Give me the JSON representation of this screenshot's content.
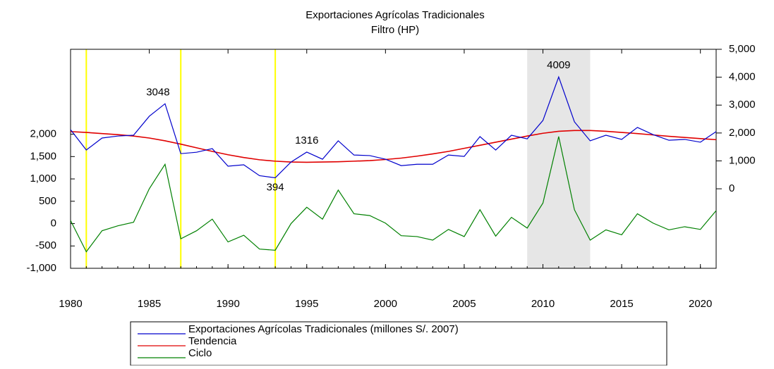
{
  "chart_data": {
    "type": "line",
    "title": "Exportaciones Agrícolas Tradicionales",
    "subtitle": "Filtro (HP)",
    "x": [
      1980,
      1981,
      1982,
      1983,
      1984,
      1985,
      1986,
      1987,
      1988,
      1989,
      1990,
      1991,
      1992,
      1993,
      1994,
      1995,
      1996,
      1997,
      1998,
      1999,
      2000,
      2001,
      2002,
      2003,
      2004,
      2005,
      2006,
      2007,
      2008,
      2009,
      2010,
      2011,
      2012,
      2013,
      2014,
      2015,
      2016,
      2017,
      2018,
      2019,
      2020,
      2021
    ],
    "xlim": [
      1980,
      2021
    ],
    "xticks": [
      1980,
      1985,
      1990,
      1995,
      2000,
      2005,
      2010,
      2015,
      2020
    ],
    "ylim": [
      -1000,
      3900
    ],
    "yticks": [
      {
        "value": -1000,
        "label": "-1,000"
      },
      -500,
      0,
      500,
      {
        "value": 1000,
        "label": "1,000"
      },
      {
        "value": 1500,
        "label": "1,500"
      },
      {
        "value": 2000,
        "label": "2,000"
      }
    ],
    "y2lim": [
      -2850,
      5000
    ],
    "y2ticks": [
      0,
      {
        "value": 1000,
        "label": "1,000"
      },
      {
        "value": 2000,
        "label": "2,000"
      },
      {
        "value": 3000,
        "label": "3,000"
      },
      {
        "value": 4000,
        "label": "4,000"
      },
      {
        "value": 5000,
        "label": "5,000"
      }
    ],
    "shaded_range": [
      2009,
      2013
    ],
    "vertical_lines": [
      1981,
      1987,
      1993
    ],
    "annotations": [
      "3048",
      "4009",
      "1316",
      "394"
    ],
    "series": [
      {
        "name": "Exportaciones Agrícolas Tradicionales (millones S/. 2007)",
        "color": "#0000cc",
        "axis": "y2",
        "values": [
          2120,
          1390,
          1820,
          1890,
          1920,
          2600,
          3048,
          1260,
          1310,
          1440,
          810,
          860,
          470,
          394,
          960,
          1316,
          1060,
          1720,
          1210,
          1190,
          1060,
          830,
          880,
          880,
          1210,
          1160,
          1870,
          1390,
          1920,
          1790,
          2450,
          4009,
          2400,
          1720,
          1920,
          1770,
          2200,
          1940,
          1740,
          1770,
          1670,
          2050
        ]
      },
      {
        "name": "Tendencia",
        "color": "#e00000",
        "axis": "y2",
        "values": [
          2050,
          2020,
          1980,
          1940,
          1890,
          1820,
          1720,
          1600,
          1470,
          1340,
          1220,
          1120,
          1040,
          990,
          960,
          950,
          960,
          970,
          990,
          1010,
          1050,
          1100,
          1170,
          1250,
          1340,
          1450,
          1560,
          1670,
          1780,
          1890,
          1990,
          2060,
          2090,
          2090,
          2060,
          2020,
          1980,
          1930,
          1880,
          1840,
          1800,
          1760
        ]
      },
      {
        "name": "Ciclo",
        "color": "#008000",
        "values": [
          70,
          -630,
          -160,
          -50,
          30,
          780,
          1328,
          -340,
          -160,
          100,
          -410,
          -260,
          -570,
          -596,
          0,
          366,
          100,
          750,
          220,
          180,
          10,
          -270,
          -290,
          -370,
          -130,
          -290,
          310,
          -280,
          140,
          -100,
          460,
          1949,
          310,
          -370,
          -140,
          -250,
          220,
          10,
          -140,
          -70,
          -130,
          290
        ]
      }
    ]
  }
}
